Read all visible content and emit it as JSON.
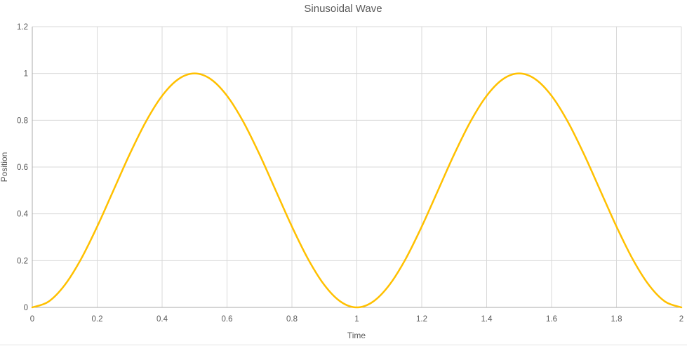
{
  "chart_data": {
    "type": "line",
    "title": "Sinusoidal Wave",
    "xlabel": "Time",
    "ylabel": "Position",
    "xlim": [
      0,
      2
    ],
    "ylim": [
      0,
      1.2
    ],
    "grid": true,
    "legend": "none",
    "x_tick_values": [
      0,
      0.2,
      0.4,
      0.6,
      0.8,
      1,
      1.2,
      1.4,
      1.6,
      1.8,
      2
    ],
    "x_tick_labels": [
      "0",
      "0.2",
      "0.4",
      "0.6",
      "0.8",
      "1",
      "1.2",
      "1.4",
      "1.6",
      "1.8",
      "2"
    ],
    "y_tick_values": [
      0,
      0.2,
      0.4,
      0.6,
      0.8,
      1,
      1.2
    ],
    "y_tick_labels": [
      "0",
      "0.2",
      "0.4",
      "0.6",
      "0.8",
      "1",
      "1.2"
    ],
    "series": [
      {
        "name": "Position",
        "color": "#FFC000",
        "x": [
          0,
          0.05,
          0.1,
          0.15,
          0.2,
          0.25,
          0.3,
          0.35,
          0.4,
          0.45,
          0.5,
          0.55,
          0.6,
          0.65,
          0.7,
          0.75,
          0.8,
          0.85,
          0.9,
          0.95,
          1,
          1.05,
          1.1,
          1.15,
          1.2,
          1.25,
          1.3,
          1.35,
          1.4,
          1.45,
          1.5,
          1.55,
          1.6,
          1.65,
          1.7,
          1.75,
          1.8,
          1.85,
          1.9,
          1.95,
          2
        ],
        "y": [
          0,
          0.0245,
          0.0955,
          0.2061,
          0.3455,
          0.5,
          0.6545,
          0.7939,
          0.9045,
          0.9755,
          1,
          0.9755,
          0.9045,
          0.7939,
          0.6545,
          0.5,
          0.3455,
          0.2061,
          0.0955,
          0.0245,
          0,
          0.0245,
          0.0955,
          0.2061,
          0.3455,
          0.5,
          0.6545,
          0.7939,
          0.9045,
          0.9755,
          1,
          0.9755,
          0.9045,
          0.7939,
          0.6545,
          0.5,
          0.3455,
          0.2061,
          0.0955,
          0.0245,
          0
        ]
      }
    ]
  },
  "colors": {
    "background": "#FFFFFF",
    "title_text": "#595959",
    "axis_title_text": "#595959",
    "tick_text": "#595959",
    "gridline": "#D9D9D9",
    "axis_line": "#ABABAB",
    "chart_border": "#E4E4E4",
    "series_gold": "#FFC000"
  }
}
